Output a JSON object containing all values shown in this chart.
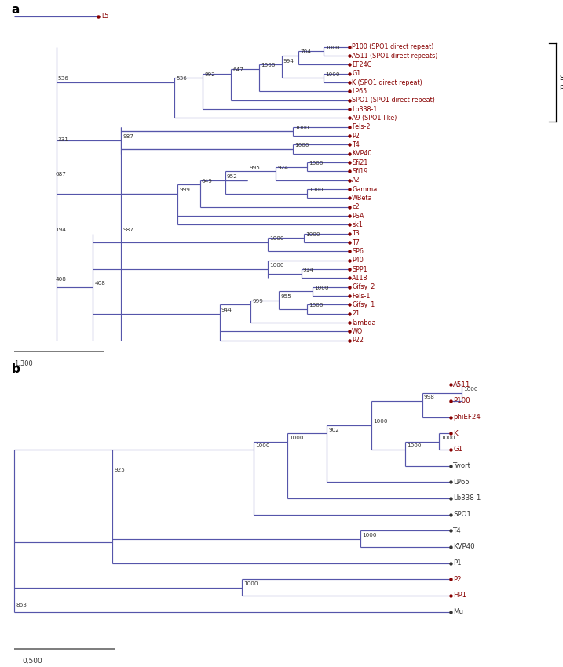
{
  "fig_width": 7.17,
  "fig_height": 8.5,
  "tree_color": "#5555aa",
  "label_color_red": "#880000",
  "label_color_black": "#333333",
  "dot_color_red": "#880000",
  "dot_color_black": "#333333",
  "panel_a": {
    "leaves": [
      {
        "name": "P100 (SPO1 direct repeat)",
        "color": "red"
      },
      {
        "name": "A511 (SPO1 direct repeats)",
        "color": "red"
      },
      {
        "name": "EF24C",
        "color": "red"
      },
      {
        "name": "G1",
        "color": "red"
      },
      {
        "name": "K (SPO1 direct repeat)",
        "color": "red"
      },
      {
        "name": "LP65",
        "color": "red"
      },
      {
        "name": "SPO1 (SPO1 direct repeat)",
        "color": "red"
      },
      {
        "name": "Lb338-1",
        "color": "red"
      },
      {
        "name": "A9 (SPO1-like)",
        "color": "red"
      },
      {
        "name": "Fels-2",
        "color": "red"
      },
      {
        "name": "P2",
        "color": "red"
      },
      {
        "name": "T4",
        "color": "red"
      },
      {
        "name": "KVP40",
        "color": "red"
      },
      {
        "name": "Sfi21",
        "color": "red"
      },
      {
        "name": "Sfi19",
        "color": "red"
      },
      {
        "name": "A2",
        "color": "red"
      },
      {
        "name": "Gamma",
        "color": "red"
      },
      {
        "name": "WBeta",
        "color": "red"
      },
      {
        "name": "c2",
        "color": "red"
      },
      {
        "name": "PSA",
        "color": "red"
      },
      {
        "name": "sk1",
        "color": "red"
      },
      {
        "name": "T3",
        "color": "red"
      },
      {
        "name": "T7",
        "color": "red"
      },
      {
        "name": "SP6",
        "color": "red"
      },
      {
        "name": "P40",
        "color": "red"
      },
      {
        "name": "SPP1",
        "color": "red"
      },
      {
        "name": "A118",
        "color": "red"
      },
      {
        "name": "Gifsy_2",
        "color": "red"
      },
      {
        "name": "Fels-1",
        "color": "red"
      },
      {
        "name": "Gifsy_1",
        "color": "red"
      },
      {
        "name": "21",
        "color": "red"
      },
      {
        "name": "lambda",
        "color": "red"
      },
      {
        "name": "WO",
        "color": "red"
      },
      {
        "name": "P22",
        "color": "red"
      }
    ]
  },
  "panel_b": {
    "leaves": [
      {
        "name": "A511",
        "color": "red"
      },
      {
        "name": "P100",
        "color": "red"
      },
      {
        "name": "phiEF24",
        "color": "red"
      },
      {
        "name": "K",
        "color": "red"
      },
      {
        "name": "G1",
        "color": "red"
      },
      {
        "name": "Twort",
        "color": "black"
      },
      {
        "name": "LP65",
        "color": "black"
      },
      {
        "name": "Lb338-1",
        "color": "black"
      },
      {
        "name": "SPO1",
        "color": "black"
      },
      {
        "name": "T4",
        "color": "black"
      },
      {
        "name": "KVP40",
        "color": "black"
      },
      {
        "name": "P1",
        "color": "black"
      },
      {
        "name": "P2",
        "color": "red"
      },
      {
        "name": "HP1",
        "color": "red"
      },
      {
        "name": "Mu",
        "color": "black"
      }
    ]
  }
}
